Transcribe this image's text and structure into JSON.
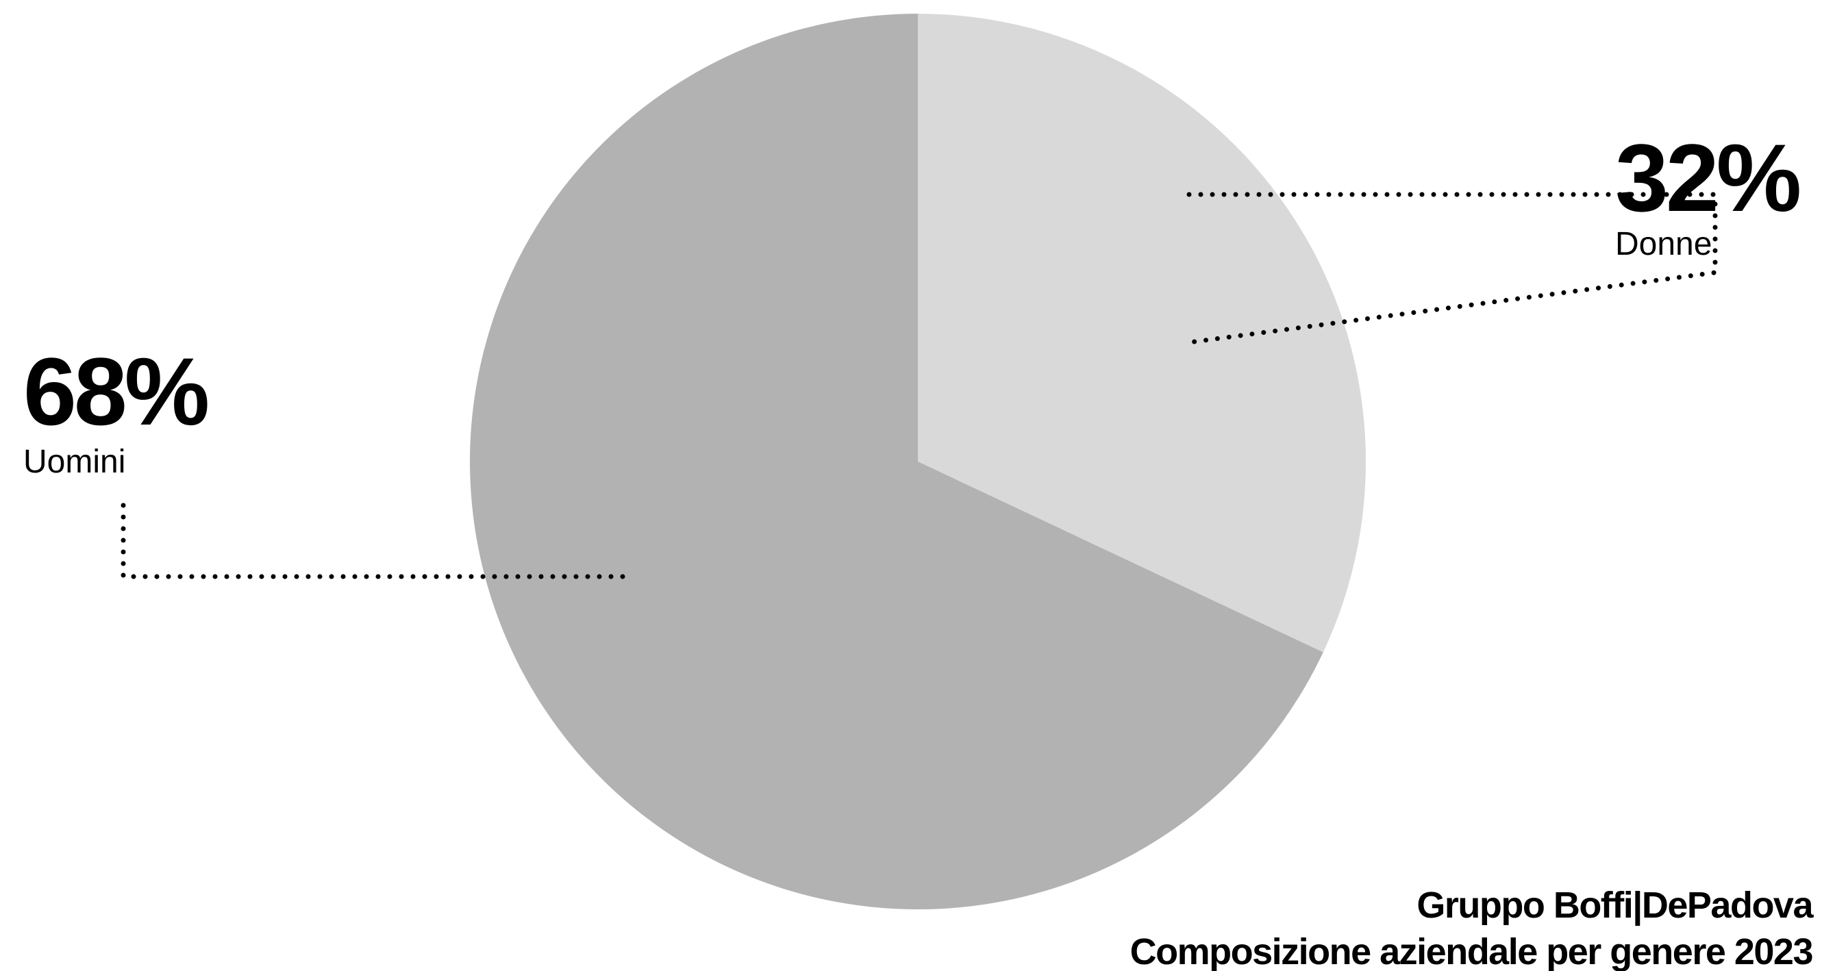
{
  "chart_data": {
    "type": "pie",
    "title": "Gruppo Boffi|DePadova",
    "subtitle": "Composizione aziendale per genere 2023",
    "categories": [
      "Donne",
      "Uomini"
    ],
    "values": [
      32,
      68
    ],
    "value_labels": [
      "32%",
      "68%"
    ],
    "colors": [
      "#d9d9d9",
      "#b2b2b2"
    ],
    "start_angle": "12 o'clock",
    "direction": "clockwise",
    "legend": "none"
  },
  "colors": {
    "background": "#ffffff",
    "text": "#000000",
    "leader_line": "#000000"
  }
}
